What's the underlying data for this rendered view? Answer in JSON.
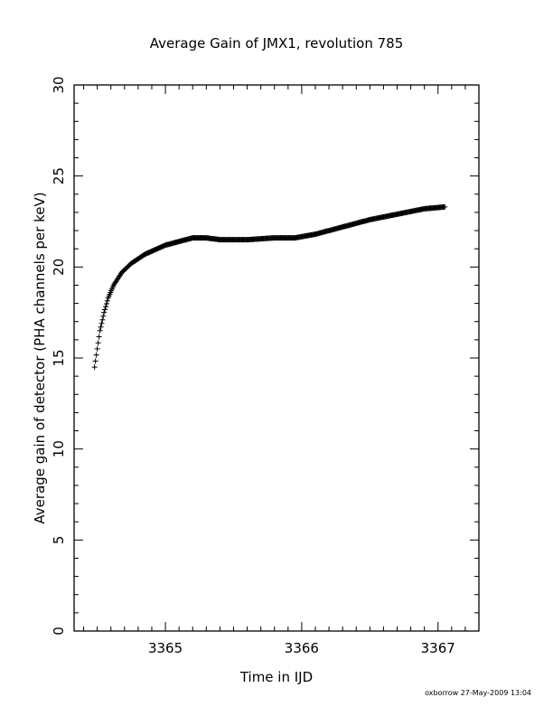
{
  "chart_data": {
    "type": "scatter",
    "title": "Average Gain of JMX1, revolution 785",
    "xlabel": "Time in IJD",
    "ylabel": "Average gain of detector (PHA channels per keV)",
    "xlim": [
      3364.33,
      3367.3
    ],
    "ylim": [
      0,
      30
    ],
    "xticks": [
      3365,
      3366,
      3367
    ],
    "yticks": [
      0,
      5,
      10,
      15,
      20,
      25,
      30
    ],
    "xtick_labels": [
      "3365",
      "3366",
      "3367"
    ],
    "ytick_labels": [
      "0",
      "5",
      "10",
      "15",
      "20",
      "25",
      "30"
    ],
    "marker": "plus",
    "grid": false,
    "series": [
      {
        "x": [
          3364.48,
          3364.5,
          3364.52,
          3364.55,
          3364.58,
          3364.62,
          3364.68,
          3364.75,
          3364.85,
          3365.0,
          3365.2,
          3365.3,
          3365.4,
          3365.6,
          3365.8,
          3365.95,
          3366.1,
          3366.3,
          3366.5,
          3366.7,
          3366.9,
          3367.05
        ],
        "y": [
          14.5,
          15.5,
          16.5,
          17.5,
          18.3,
          19.0,
          19.7,
          20.2,
          20.7,
          21.2,
          21.6,
          21.6,
          21.5,
          21.5,
          21.6,
          21.6,
          21.8,
          22.2,
          22.6,
          22.9,
          23.2,
          23.3
        ]
      }
    ]
  },
  "footer": {
    "credit": "oxborrow 27-May-2009 13:04"
  }
}
